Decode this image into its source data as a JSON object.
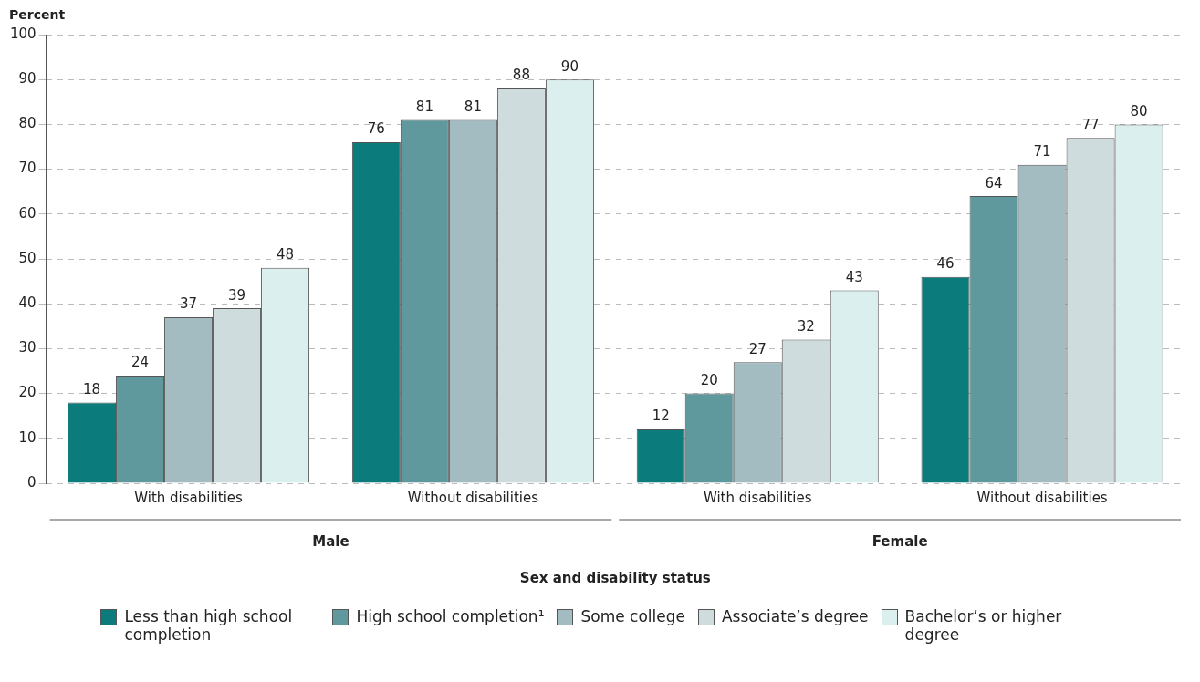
{
  "chart_data": {
    "type": "bar",
    "ylabel": "Percent",
    "xlabel": "Sex and disability status",
    "categories": [
      "With disabilities",
      "Without disabilities",
      "With disabilities",
      "Without disabilities"
    ],
    "annotations": [
      "Male",
      "Female"
    ],
    "series": [
      {
        "name": "Less than high school completion",
        "color": "#0b7b7b",
        "values": [
          18,
          76,
          12,
          46
        ]
      },
      {
        "name": "High school completion¹",
        "color": "#5f999d",
        "values": [
          24,
          81,
          20,
          64
        ]
      },
      {
        "name": "Some college",
        "color": "#a3bcc1",
        "values": [
          37,
          81,
          27,
          71
        ]
      },
      {
        "name": "Associate’s degree",
        "color": "#cfdcdd",
        "values": [
          39,
          88,
          32,
          77
        ]
      },
      {
        "name": "Bachelor’s or higher degree",
        "color": "#dcefef",
        "values": [
          48,
          90,
          43,
          80
        ]
      }
    ],
    "ylim": [
      0,
      100
    ],
    "yticks": [
      0,
      10,
      20,
      30,
      40,
      50,
      60,
      70,
      80,
      90,
      100
    ],
    "grid": "y",
    "data_labels": true,
    "legend": "bottom"
  }
}
